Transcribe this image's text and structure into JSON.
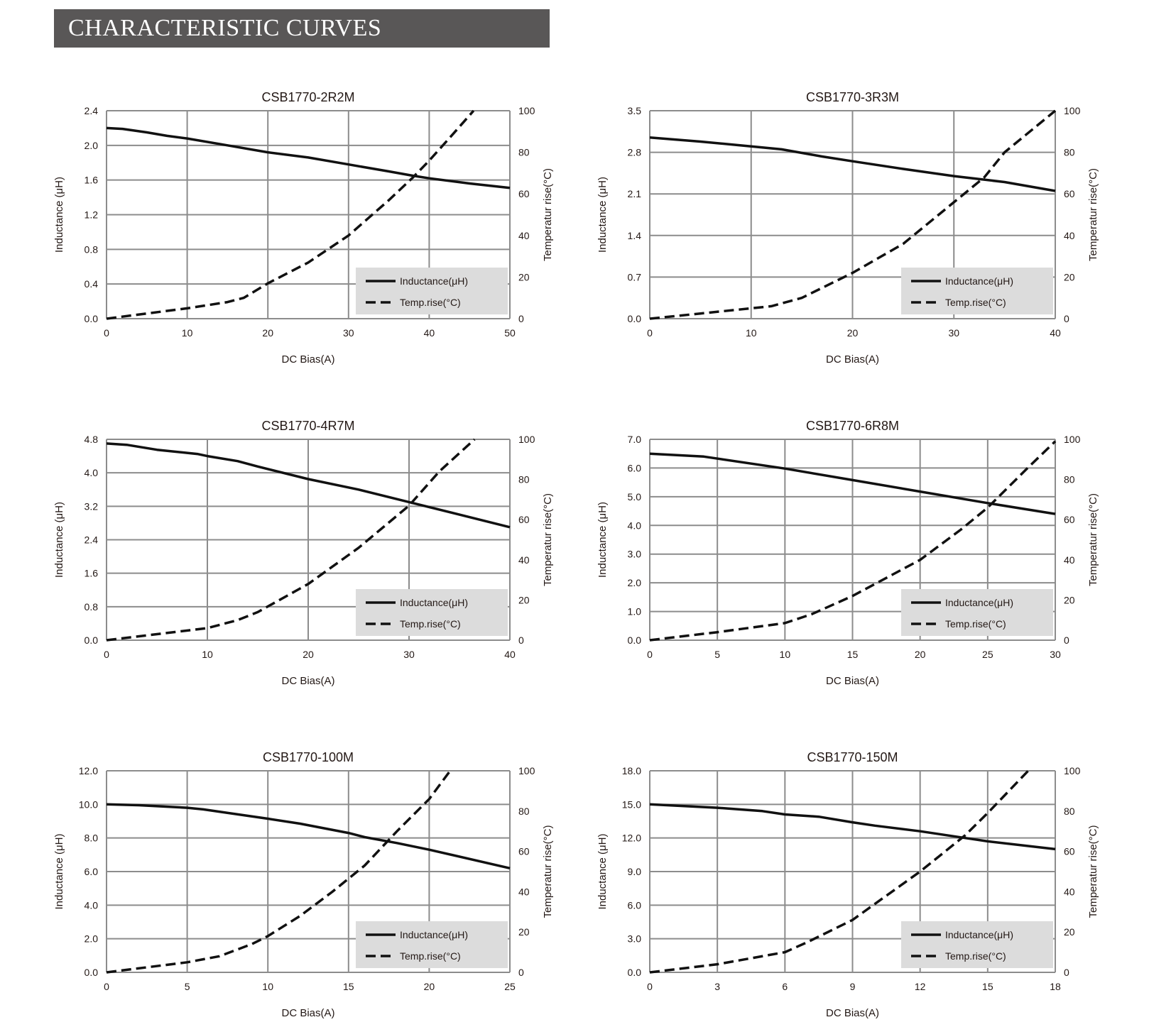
{
  "header": {
    "title": "CHARACTERISTIC CURVES"
  },
  "colors": {
    "header_bg": "#595757",
    "grid": "#8c8c8c",
    "legend_bg": "#dcdcdc",
    "line": "#111111"
  },
  "chart_data": [
    {
      "type": "line",
      "title": "CSB1770-2R2M",
      "xlabel": "DC Bias(A)",
      "ylabel": "Inductance (μH)",
      "y2label": "Temperatur rise(°C)",
      "xlim": [
        0,
        50
      ],
      "ylim": [
        0,
        2.4
      ],
      "y2lim": [
        0,
        100
      ],
      "grid": true,
      "legend_position": "bottom-right",
      "xticks": [
        "0",
        "10",
        "20",
        "30",
        "40",
        "50"
      ],
      "yticks": [
        "0.0",
        "0.4",
        "0.8",
        "1.2",
        "1.6",
        "2.0",
        "2.4"
      ],
      "y2ticks": [
        "0",
        "20",
        "40",
        "60",
        "80",
        "100"
      ],
      "series": [
        {
          "name": "Inductance(μH)",
          "axis": "left",
          "style": "solid",
          "x": [
            0,
            2,
            5,
            7.5,
            10,
            15,
            20,
            25,
            30,
            35,
            38,
            40,
            45,
            50
          ],
          "y": [
            2.2,
            2.19,
            2.15,
            2.11,
            2.08,
            2.0,
            1.92,
            1.86,
            1.78,
            1.7,
            1.65,
            1.62,
            1.56,
            1.51
          ]
        },
        {
          "name": "Temp.rise(°C)",
          "axis": "right",
          "style": "dashed",
          "x": [
            0,
            5,
            10,
            15,
            17,
            20,
            25,
            30,
            35,
            38,
            40,
            43,
            45.5
          ],
          "y": [
            0,
            2.5,
            5,
            8,
            10,
            17,
            27,
            40,
            57,
            68,
            76,
            89,
            100
          ]
        }
      ]
    },
    {
      "type": "line",
      "title": "CSB1770-3R3M",
      "xlabel": "DC Bias(A)",
      "ylabel": "Inductance (μH)",
      "y2label": "Temperatur rise(°C)",
      "xlim": [
        0,
        40
      ],
      "ylim": [
        0,
        3.5
      ],
      "y2lim": [
        0,
        100
      ],
      "grid": true,
      "legend_position": "bottom-right",
      "xticks": [
        "0",
        "10",
        "20",
        "30",
        "40"
      ],
      "yticks": [
        "0.0",
        "0.7",
        "1.4",
        "2.1",
        "2.8",
        "3.5"
      ],
      "y2ticks": [
        "0",
        "20",
        "40",
        "60",
        "80",
        "100"
      ],
      "series": [
        {
          "name": "Inductance(μH)",
          "axis": "left",
          "style": "solid",
          "x": [
            0,
            5,
            10,
            13,
            17,
            20,
            25,
            30,
            35,
            40
          ],
          "y": [
            3.05,
            2.98,
            2.9,
            2.85,
            2.73,
            2.65,
            2.52,
            2.4,
            2.3,
            2.15
          ]
        },
        {
          "name": "Temp.rise(°C)",
          "axis": "right",
          "style": "dashed",
          "x": [
            0,
            5,
            10,
            12,
            15,
            20,
            25,
            30,
            33,
            35,
            40
          ],
          "y": [
            0,
            2.5,
            5,
            6,
            10,
            22,
            36,
            56,
            68,
            80,
            100
          ]
        }
      ]
    },
    {
      "type": "line",
      "title": "CSB1770-4R7M",
      "xlabel": "DC Bias(A)",
      "ylabel": "Inductance (μH)",
      "y2label": "Temperatur rise(°C)",
      "xlim": [
        0,
        40
      ],
      "ylim": [
        0,
        4.8
      ],
      "y2lim": [
        0,
        100
      ],
      "grid": true,
      "legend_position": "bottom-right",
      "xticks": [
        "0",
        "10",
        "20",
        "30",
        "40"
      ],
      "yticks": [
        "0.0",
        "0.8",
        "1.6",
        "2.4",
        "3.2",
        "4.0",
        "4.8"
      ],
      "y2ticks": [
        "0",
        "20",
        "40",
        "60",
        "80",
        "100"
      ],
      "series": [
        {
          "name": "Inductance(μH)",
          "axis": "left",
          "style": "solid",
          "x": [
            0,
            2,
            5,
            9,
            10,
            13,
            15,
            20,
            25,
            30,
            35,
            40
          ],
          "y": [
            4.7,
            4.67,
            4.55,
            4.45,
            4.4,
            4.28,
            4.15,
            3.85,
            3.6,
            3.3,
            3.0,
            2.7
          ]
        },
        {
          "name": "Temp.rise(°C)",
          "axis": "right",
          "style": "dashed",
          "x": [
            0,
            5,
            10,
            13,
            15,
            20,
            25,
            30,
            33,
            36.5
          ],
          "y": [
            0,
            3,
            6,
            10,
            14,
            28,
            46,
            67,
            84,
            100
          ]
        }
      ]
    },
    {
      "type": "line",
      "title": "CSB1770-6R8M",
      "xlabel": "DC Bias(A)",
      "ylabel": "Inductance (μH)",
      "y2label": "Temperatur rise(°C)",
      "xlim": [
        0,
        30
      ],
      "ylim": [
        0,
        7.0
      ],
      "y2lim": [
        0,
        100
      ],
      "grid": true,
      "legend_position": "bottom-right",
      "xticks": [
        "0",
        "5",
        "10",
        "15",
        "20",
        "25",
        "30"
      ],
      "yticks": [
        "0.0",
        "1.0",
        "2.0",
        "3.0",
        "4.0",
        "5.0",
        "6.0",
        "7.0"
      ],
      "y2ticks": [
        "0",
        "20",
        "40",
        "60",
        "80",
        "100"
      ],
      "series": [
        {
          "name": "Inductance(μH)",
          "axis": "left",
          "style": "solid",
          "x": [
            0,
            4,
            10,
            15,
            20,
            25,
            30
          ],
          "y": [
            6.5,
            6.4,
            5.98,
            5.58,
            5.18,
            4.78,
            4.4
          ]
        },
        {
          "name": "Temp.rise(°C)",
          "axis": "right",
          "style": "dashed",
          "x": [
            0,
            5,
            10,
            12,
            15,
            20,
            23,
            25,
            28,
            30
          ],
          "y": [
            0,
            4,
            8.5,
            13,
            22,
            40,
            55,
            66,
            86,
            99
          ]
        }
      ]
    },
    {
      "type": "line",
      "title": "CSB1770-100M",
      "xlabel": "DC Bias(A)",
      "ylabel": "Inductance (μH)",
      "y2label": "Temperatur rise(°C)",
      "xlim": [
        0,
        25
      ],
      "ylim": [
        0,
        12.0
      ],
      "y2lim": [
        0,
        100
      ],
      "grid": true,
      "legend_position": "bottom-right",
      "xticks": [
        "0",
        "5",
        "10",
        "15",
        "20",
        "25"
      ],
      "yticks": [
        "0.0",
        "2.0",
        "4.0",
        "6.0",
        "8.0",
        "10.0",
        "12.0"
      ],
      "y2ticks": [
        "0",
        "20",
        "40",
        "60",
        "80",
        "100"
      ],
      "series": [
        {
          "name": "Inductance(μH)",
          "axis": "left",
          "style": "solid",
          "x": [
            0,
            2,
            5,
            6,
            10,
            12,
            15,
            16,
            18,
            20,
            25
          ],
          "y": [
            10,
            9.95,
            9.8,
            9.7,
            9.15,
            8.85,
            8.3,
            8.05,
            7.7,
            7.3,
            6.2
          ]
        },
        {
          "name": "Temp.rise(°C)",
          "axis": "right",
          "style": "dashed",
          "x": [
            0,
            5,
            7,
            9,
            10,
            12,
            14,
            16,
            18,
            20,
            21.3
          ],
          "y": [
            0,
            5,
            8,
            14,
            18,
            28,
            40,
            53,
            70,
            86,
            100
          ]
        }
      ]
    },
    {
      "type": "line",
      "title": "CSB1770-150M",
      "xlabel": "DC Bias(A)",
      "ylabel": "Inductance (μH)",
      "y2label": "Temperatur rise(°C)",
      "xlim": [
        0,
        18
      ],
      "ylim": [
        0,
        18.0
      ],
      "y2lim": [
        0,
        100
      ],
      "grid": true,
      "legend_position": "bottom-right",
      "xticks": [
        "0",
        "3",
        "6",
        "9",
        "12",
        "15",
        "18"
      ],
      "yticks": [
        "0.0",
        "3.0",
        "6.0",
        "9.0",
        "12.0",
        "15.0",
        "18.0"
      ],
      "y2ticks": [
        "0",
        "20",
        "40",
        "60",
        "80",
        "100"
      ],
      "series": [
        {
          "name": "Inductance(μH)",
          "axis": "left",
          "style": "solid",
          "x": [
            0,
            3,
            5,
            6,
            7.5,
            9,
            10,
            12,
            14,
            15,
            18
          ],
          "y": [
            15,
            14.7,
            14.4,
            14.1,
            13.9,
            13.4,
            13.1,
            12.6,
            12.0,
            11.7,
            11.0
          ]
        },
        {
          "name": "Temp.rise(°C)",
          "axis": "right",
          "style": "dashed",
          "x": [
            0,
            3,
            6,
            7,
            9,
            10,
            12,
            14,
            15,
            16.8
          ],
          "y": [
            0,
            4,
            10,
            15,
            26,
            34,
            50,
            68,
            79,
            100
          ]
        }
      ]
    }
  ]
}
